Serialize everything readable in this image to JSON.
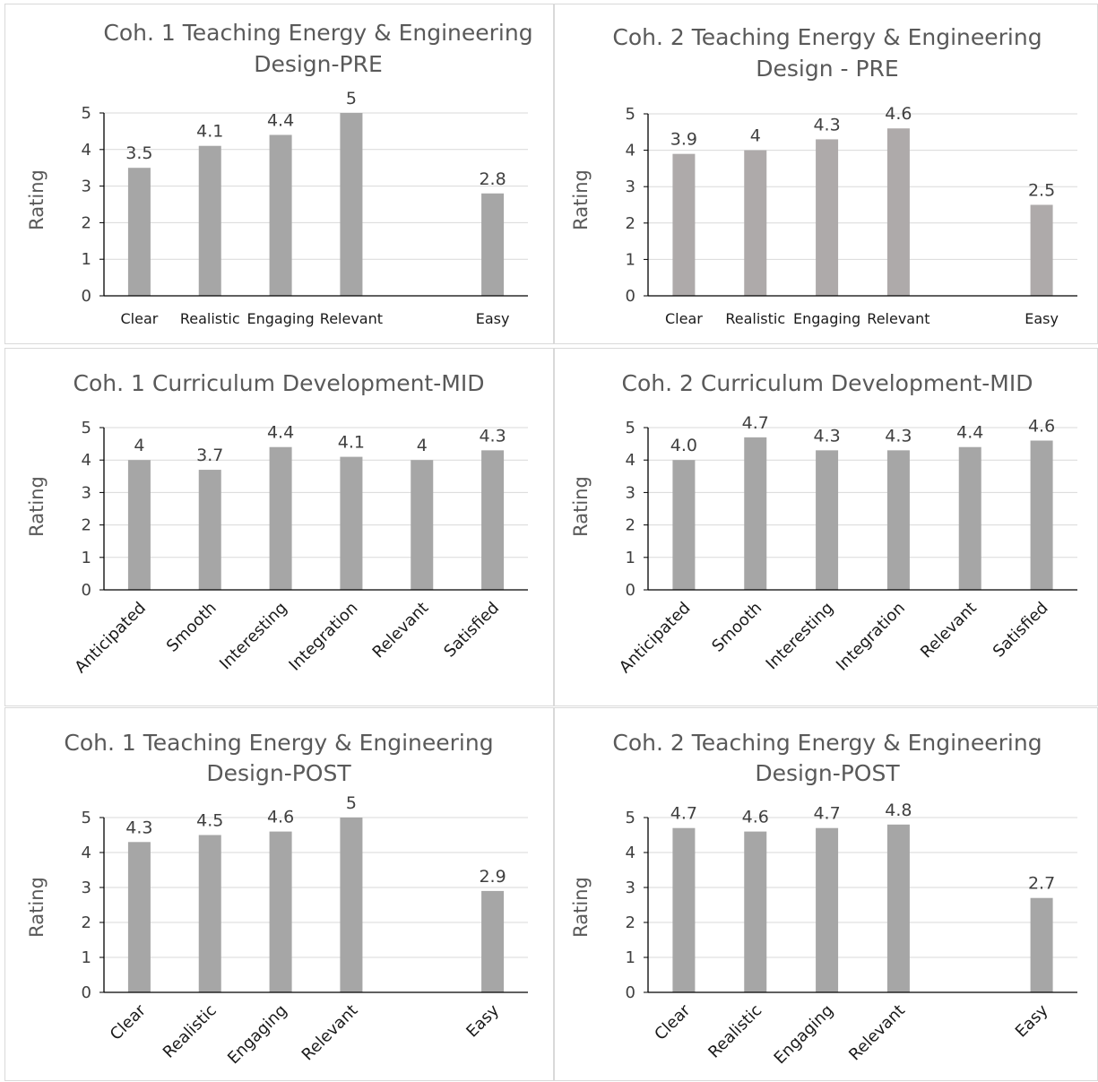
{
  "chart_data": [
    {
      "type": "bar",
      "title_lines": [
        "Coh. 1 Teaching Energy & Engineering",
        "Design-PRE"
      ],
      "ylabel": "Rating",
      "ylim": [
        0,
        5
      ],
      "yticks": [
        "0",
        "1",
        "2",
        "3",
        "4",
        "5"
      ],
      "categories": [
        "Clear",
        "Realistic",
        "Engaging",
        "Relevant",
        "",
        "Easy"
      ],
      "values": [
        3.5,
        4.1,
        4.4,
        5,
        null,
        2.8
      ],
      "data_labels": [
        "3.5",
        "4.1",
        "4.4",
        "5",
        "",
        "2.8"
      ],
      "bar_color": "#a6a6a6",
      "grid": true,
      "tick_rotation": 0
    },
    {
      "type": "bar",
      "title_lines": [
        "Coh. 2 Teaching Energy & Engineering",
        "Design - PRE"
      ],
      "ylabel": "Rating",
      "ylim": [
        0,
        5
      ],
      "yticks": [
        "0",
        "1",
        "2",
        "3",
        "4",
        "5"
      ],
      "categories": [
        "Clear",
        "Realistic",
        "Engaging",
        "Relevant",
        "",
        "Easy"
      ],
      "values": [
        3.9,
        4,
        4.3,
        4.6,
        null,
        2.5
      ],
      "data_labels": [
        "3.9",
        "4",
        "4.3",
        "4.6",
        "",
        "2.5"
      ],
      "bar_color": "#aeaaaa",
      "grid": true,
      "tick_rotation": 0
    },
    {
      "type": "bar",
      "title_lines": [
        "Coh. 1 Curriculum Development-MID"
      ],
      "ylabel": "Rating",
      "ylim": [
        0,
        5
      ],
      "yticks": [
        "0",
        "1",
        "2",
        "3",
        "4",
        "5"
      ],
      "categories": [
        "Anticipated",
        "Smooth",
        "Interesting",
        "Integration",
        "Relevant",
        "Satisfied"
      ],
      "values": [
        4,
        3.7,
        4.4,
        4.1,
        4,
        4.3
      ],
      "data_labels": [
        "4",
        "3.7",
        "4.4",
        "4.1",
        "4",
        "4.3"
      ],
      "bar_color": "#a6a6a6",
      "grid": true,
      "tick_rotation": -45
    },
    {
      "type": "bar",
      "title_lines": [
        "Coh. 2 Curriculum Development-MID"
      ],
      "ylabel": "Rating",
      "ylim": [
        0,
        5
      ],
      "yticks": [
        "0",
        "1",
        "2",
        "3",
        "4",
        "5"
      ],
      "categories": [
        "Anticipated",
        "Smooth",
        "Interesting",
        "Integration",
        "Relevant",
        "Satisfied"
      ],
      "values": [
        4.0,
        4.7,
        4.3,
        4.3,
        4.4,
        4.6
      ],
      "data_labels": [
        "4.0",
        "4.7",
        "4.3",
        "4.3",
        "4.4",
        "4.6"
      ],
      "bar_color": "#a6a6a6",
      "grid": true,
      "tick_rotation": -45
    },
    {
      "type": "bar",
      "title_lines": [
        "Coh. 1 Teaching Energy & Engineering",
        "Design-POST"
      ],
      "ylabel": "Rating",
      "ylim": [
        0,
        5
      ],
      "yticks": [
        "0",
        "1",
        "2",
        "3",
        "4",
        "5"
      ],
      "categories": [
        "Clear",
        "Realistic",
        "Engaging",
        "Relevant",
        "",
        "Easy"
      ],
      "values": [
        4.3,
        4.5,
        4.6,
        5,
        null,
        2.9
      ],
      "data_labels": [
        "4.3",
        "4.5",
        "4.6",
        "5",
        "",
        "2.9"
      ],
      "bar_color": "#a6a6a6",
      "grid": true,
      "tick_rotation": -45
    },
    {
      "type": "bar",
      "title_lines": [
        "Coh. 2 Teaching Energy & Engineering",
        "Design-POST"
      ],
      "ylabel": "Rating",
      "ylim": [
        0,
        5
      ],
      "yticks": [
        "0",
        "1",
        "2",
        "3",
        "4",
        "5"
      ],
      "categories": [
        "Clear",
        "Realistic",
        "Engaging",
        "Relevant",
        "",
        "Easy"
      ],
      "values": [
        4.7,
        4.6,
        4.7,
        4.8,
        null,
        2.7
      ],
      "data_labels": [
        "4.7",
        "4.6",
        "4.7",
        "4.8",
        "",
        "2.7"
      ],
      "bar_color": "#a6a6a6",
      "grid": true,
      "tick_rotation": -45
    }
  ]
}
